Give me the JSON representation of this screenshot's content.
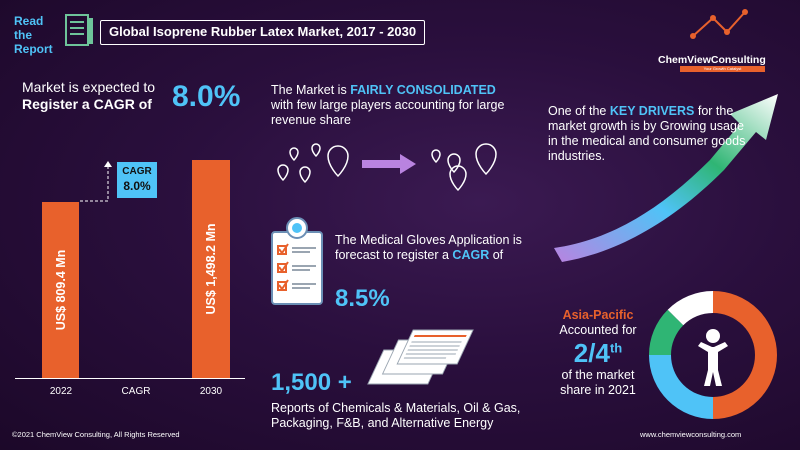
{
  "header": {
    "read_report": "Read the Report",
    "title": "Global Isoprene Rubber Latex Market, 2017 - 2030"
  },
  "logo": {
    "name": "ChemViewConsulting",
    "tagline": "Your Growth Catalyst"
  },
  "cagr_section": {
    "line1": "Market is expected to",
    "line2": "Register a CAGR of",
    "value": "8.0%"
  },
  "bar_chart": {
    "bars": [
      {
        "year": "2022",
        "label": "US$ 809.4  Mn",
        "value": 809.4
      },
      {
        "year": "2030",
        "label": "US$ 1,498.2  Mn",
        "value": 1498.2
      }
    ],
    "cagr_tick": "CAGR",
    "callout_label": "CAGR",
    "callout_value": "8.0%"
  },
  "consolidated": {
    "prefix": "The Market is ",
    "highlight": "FAIRLY CONSOLIDATED",
    "rest": "with few large players accounting for large revenue  share"
  },
  "gloves": {
    "text_main": "The Medical Gloves Application is forecast to register a ",
    "highlight": "CAGR",
    "suffix": " of",
    "value": "8.5%"
  },
  "reports": {
    "count": "1,500 +",
    "text": "Reports of Chemicals & Materials, Oil & Gas, Packaging, F&B, and Alternative Energy"
  },
  "drivers": {
    "prefix": "One of the ",
    "highlight": "KEY DRIVERS",
    "rest": " for the market growth is by Growing usage in the medical and consumer goods industries."
  },
  "asia_pacific": {
    "title": "Asia-Pacific",
    "accounted": "Accounted for",
    "fraction": "2/4",
    "fraction_suffix": "th",
    "share": "of the market share in 2021",
    "share_fraction": 0.5
  },
  "footer": {
    "left": "©2021  ChemView  Consulting,  All  Rights Reserved",
    "right": "www.chemviewconsulting.com"
  },
  "colors": {
    "accent_blue": "#4fc3f7",
    "accent_orange": "#e8612c",
    "background": "#2a0f3d"
  }
}
